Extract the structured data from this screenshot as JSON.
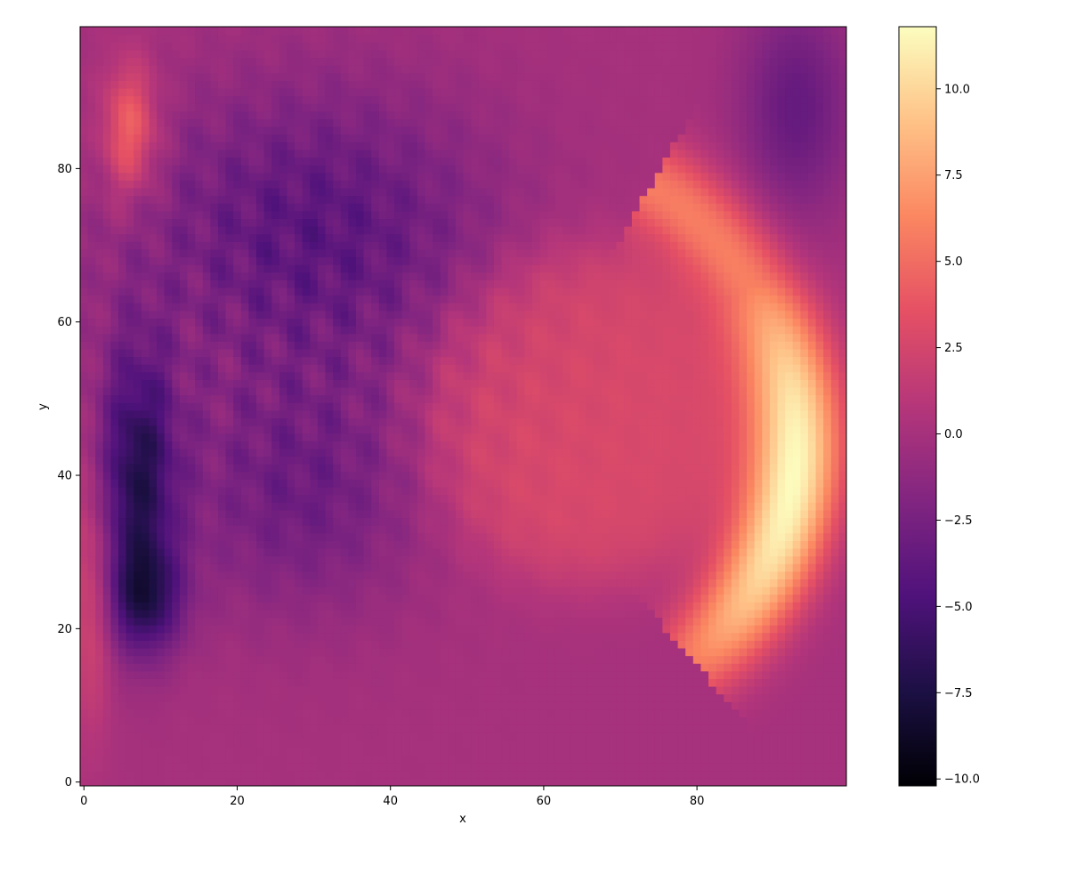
{
  "chart_data": {
    "type": "heatmap",
    "title": "",
    "xlabel": "x",
    "ylabel": "y",
    "xlim": [
      -0.5,
      99.5
    ],
    "ylim": [
      -0.5,
      98.5
    ],
    "grid_size": [
      100,
      99
    ],
    "origin": "lower",
    "colormap": "magma",
    "grid": false,
    "legend": "colorbar-right",
    "x_ticks": [
      0,
      20,
      40,
      60,
      80
    ],
    "x_tick_labels": [
      "0",
      "20",
      "40",
      "60",
      "80"
    ],
    "y_ticks": [
      0,
      20,
      40,
      60,
      80
    ],
    "y_tick_labels": [
      "0",
      "20",
      "40",
      "60",
      "80"
    ],
    "colorbar": {
      "vmin": -10.2,
      "vmax": 11.8,
      "ticks": [
        -10.0,
        -7.5,
        -5.0,
        -2.5,
        0.0,
        2.5,
        5.0,
        7.5,
        10.0
      ],
      "tick_labels": [
        "−10.0",
        "−7.5",
        "−5.0",
        "−2.5",
        "0.0",
        "2.5",
        "5.0",
        "7.5",
        "10.0"
      ]
    },
    "field_features": {
      "background_value": 0.0,
      "vortex": {
        "center": [
          66,
          48
        ],
        "radius": 22,
        "value": 2.8
      },
      "bright_arc": {
        "center": [
          55,
          45
        ],
        "radius": 38,
        "theta_from_deg": -50,
        "theta_to_deg": 60,
        "peak_value": 11.5
      },
      "dark_band": {
        "center": [
          7,
          40
        ],
        "value": -9.5
      },
      "upper_left_purple": {
        "center": [
          30,
          72
        ],
        "value": -4.0
      },
      "mid_swirl": {
        "center": [
          28,
          38
        ],
        "value": -3.0
      },
      "top_right_purple": {
        "center": [
          93,
          88
        ],
        "value": -3.5
      },
      "left_edge_orange": {
        "center": [
          1,
          25
        ],
        "value": 3.0
      },
      "top_left_streak": {
        "center": [
          6,
          85
        ],
        "value": 5.0
      }
    }
  }
}
